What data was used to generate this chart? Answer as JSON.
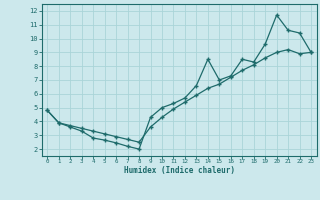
{
  "xlabel": "Humidex (Indice chaleur)",
  "background_color": "#cce8ec",
  "grid_color": "#aad4d8",
  "line_color": "#1e6b6b",
  "xlim": [
    -0.5,
    23.5
  ],
  "ylim": [
    1.5,
    12.5
  ],
  "xticks": [
    0,
    1,
    2,
    3,
    4,
    5,
    6,
    7,
    8,
    9,
    10,
    11,
    12,
    13,
    14,
    15,
    16,
    17,
    18,
    19,
    20,
    21,
    22,
    23
  ],
  "yticks": [
    2,
    3,
    4,
    5,
    6,
    7,
    8,
    9,
    10,
    11,
    12
  ],
  "line1_x": [
    0,
    1,
    2,
    3,
    4,
    5,
    6,
    7,
    8,
    9,
    10,
    11,
    12,
    13,
    14,
    15,
    16,
    17,
    18,
    19,
    20,
    21,
    22,
    23
  ],
  "line1_y": [
    4.8,
    3.9,
    3.6,
    3.3,
    2.8,
    2.65,
    2.45,
    2.2,
    2.0,
    4.3,
    5.0,
    5.3,
    5.7,
    6.6,
    8.5,
    7.0,
    7.3,
    8.5,
    8.3,
    9.6,
    11.7,
    10.6,
    10.4,
    9.0
  ],
  "line2_x": [
    0,
    1,
    2,
    3,
    4,
    5,
    6,
    7,
    8,
    9,
    10,
    11,
    12,
    13,
    14,
    15,
    16,
    17,
    18,
    19,
    20,
    21,
    22,
    23
  ],
  "line2_y": [
    4.8,
    3.9,
    3.7,
    3.5,
    3.3,
    3.1,
    2.9,
    2.7,
    2.5,
    3.6,
    4.3,
    4.9,
    5.4,
    5.9,
    6.4,
    6.7,
    7.2,
    7.7,
    8.1,
    8.6,
    9.0,
    9.2,
    8.9,
    9.0
  ]
}
